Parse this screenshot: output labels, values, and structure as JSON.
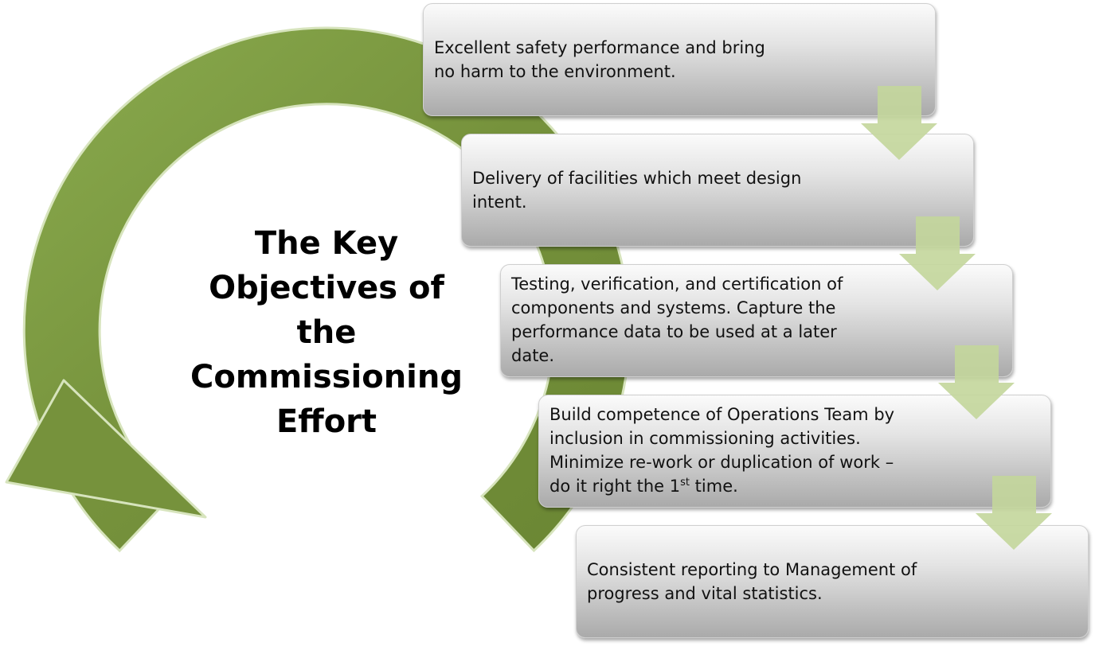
{
  "title_lines": [
    "The Key",
    "Objectives of",
    "the",
    "Commissioning",
    "Effort"
  ],
  "steps": [
    {
      "text": "Excellent safety performance  and bring no harm to the environment."
    },
    {
      "text": "Delivery of facilities which meet design intent."
    },
    {
      "text": "Testing, verification, and certification of components and systems. Capture the performance data to be used at a later date."
    },
    {
      "text_before": "Build competence of Operations Team by inclusion in commissioning activities. Minimize re-work or duplication of work – do it right the 1",
      "superscript": "st",
      "text_after": " time."
    },
    {
      "text": "Consistent reporting to Management of progress and vital statistics."
    }
  ],
  "colors": {
    "cycle_arrow": "#76923c",
    "cycle_arrow_light": "#9bbb59",
    "down_arrow": "#c3d69b",
    "box_top": "#fbfbfb",
    "box_bottom": "#aaaaaa"
  },
  "icons": {
    "cycle": "circular-arrow-icon",
    "step_connector": "down-arrow-icon"
  }
}
